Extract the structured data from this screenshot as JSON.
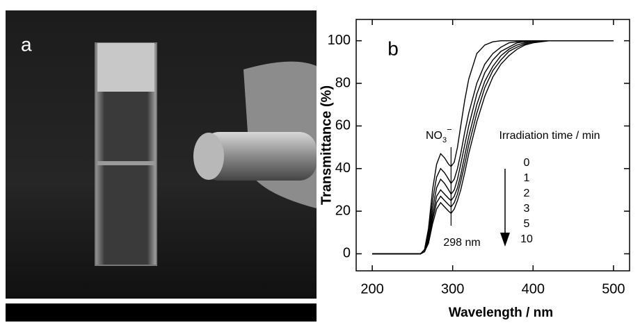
{
  "photo": {
    "panel_label": "a"
  },
  "chart_data": {
    "type": "line",
    "panel_label": "b",
    "xlabel": "Wavelength / nm",
    "ylabel": "Transmittance (%)",
    "x": [
      200,
      260,
      265,
      270,
      275,
      280,
      285,
      290,
      295,
      298,
      302,
      306,
      310,
      315,
      320,
      330,
      340,
      350,
      360,
      370,
      380,
      390,
      400,
      420,
      450,
      500
    ],
    "series": [
      {
        "name": "0",
        "color": "#000000",
        "values": [
          0,
          0,
          2,
          12,
          30,
          42,
          47,
          45,
          42,
          41,
          43,
          50,
          60,
          72,
          82,
          94,
          98,
          99.5,
          100,
          100,
          100,
          100,
          100,
          100,
          100,
          100
        ]
      },
      {
        "name": "1",
        "color": "#000000",
        "values": [
          0,
          0,
          2,
          10,
          25,
          36,
          40,
          38,
          35,
          33,
          35,
          40,
          47,
          57,
          66,
          80,
          89,
          94,
          97,
          99,
          99.5,
          100,
          100,
          100,
          100,
          100
        ]
      },
      {
        "name": "2",
        "color": "#000000",
        "values": [
          0,
          0,
          1,
          8,
          21,
          31,
          35,
          33,
          30,
          28,
          30,
          35,
          42,
          51,
          60,
          75,
          85,
          91,
          95,
          97,
          99,
          99.5,
          100,
          100,
          100,
          100
        ]
      },
      {
        "name": "3",
        "color": "#000000",
        "values": [
          0,
          0,
          1,
          7,
          18,
          27,
          30,
          28,
          26,
          25,
          27,
          31,
          37,
          46,
          55,
          70,
          81,
          88,
          93,
          96,
          98,
          99,
          99.5,
          100,
          100,
          100
        ]
      },
      {
        "name": "5",
        "color": "#000000",
        "values": [
          0,
          0,
          1,
          6,
          16,
          24,
          27,
          25,
          23,
          22,
          24,
          28,
          34,
          42,
          51,
          66,
          78,
          86,
          91,
          95,
          97,
          98.5,
          99.5,
          100,
          100,
          100
        ]
      },
      {
        "name": "10",
        "color": "#000000",
        "values": [
          0,
          0,
          1,
          5,
          14,
          21,
          24,
          22,
          20,
          19,
          21,
          25,
          30,
          38,
          47,
          62,
          74,
          83,
          89,
          93,
          96,
          98,
          99,
          100,
          100,
          100
        ]
      }
    ],
    "legend_title": "Irradiation time / min",
    "ion_label": [
      "NO",
      "3",
      "−"
    ],
    "marker_label": "298 nm",
    "marker_x": 298,
    "xlim": [
      180,
      520
    ],
    "xticks": [
      200,
      300,
      400,
      500
    ],
    "ylim": [
      -8,
      110
    ],
    "yticks": [
      0,
      20,
      40,
      60,
      80,
      100
    ]
  }
}
